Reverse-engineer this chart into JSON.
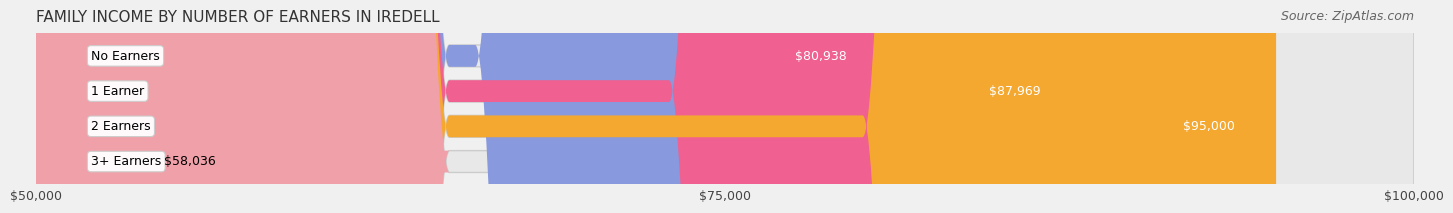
{
  "title": "FAMILY INCOME BY NUMBER OF EARNERS IN IREDELL",
  "source": "Source: ZipAtlas.com",
  "categories": [
    "No Earners",
    "1 Earner",
    "2 Earners",
    "3+ Earners"
  ],
  "values": [
    80938,
    87969,
    95000,
    58036
  ],
  "bar_colors": [
    "#8899DD",
    "#F06090",
    "#F5A830",
    "#F0A0A8"
  ],
  "bar_label_colors": [
    "white",
    "white",
    "white",
    "black"
  ],
  "value_labels": [
    "$80,938",
    "$87,969",
    "$95,000",
    "$58,036"
  ],
  "xmin": 50000,
  "xmax": 100000,
  "xticks": [
    50000,
    75000,
    100000
  ],
  "xtick_labels": [
    "$50,000",
    "$75,000",
    "$100,000"
  ],
  "background_color": "#F0F0F0",
  "bar_background_color": "#E8E8E8",
  "title_fontsize": 11,
  "source_fontsize": 9,
  "label_fontsize": 9,
  "value_fontsize": 9,
  "tick_fontsize": 9
}
